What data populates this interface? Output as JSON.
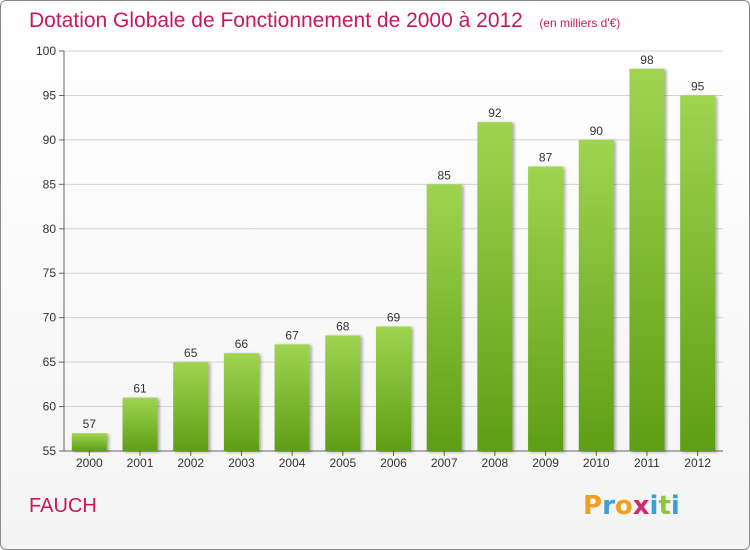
{
  "header": {
    "title": "Dotation Globale de Fonctionnement de 2000 à 2012",
    "subtitle": "(en milliers d'€)"
  },
  "footer": {
    "commune": "FAUCH",
    "logo_text": "Proxiti",
    "logo_letters": [
      {
        "char": "P",
        "color": "#f0a020"
      },
      {
        "char": "r",
        "color": "#3aa0d8"
      },
      {
        "char": "o",
        "color": "#f0a020"
      },
      {
        "char": "x",
        "color": "#d02a6e"
      },
      {
        "char": "i",
        "color": "#3aa0d8"
      },
      {
        "char": "t",
        "color": "#8cc63f"
      },
      {
        "char": "i",
        "color": "#3aa0d8"
      }
    ]
  },
  "colors": {
    "accent": "#c8185e",
    "bar_top": "#9fd450",
    "bar_bottom": "#5e9e15"
  },
  "chart_data": {
    "type": "bar",
    "title": "Dotation Globale de Fonctionnement de 2000 à 2012",
    "subtitle": "(en milliers d'€)",
    "categories": [
      "2000",
      "2001",
      "2002",
      "2003",
      "2004",
      "2005",
      "2006",
      "2007",
      "2008",
      "2009",
      "2010",
      "2011",
      "2012"
    ],
    "values": [
      57,
      61,
      65,
      66,
      67,
      68,
      69,
      85,
      92,
      87,
      90,
      98,
      95
    ],
    "ylim": [
      55,
      100
    ],
    "yticks": [
      55,
      60,
      65,
      70,
      75,
      80,
      85,
      90,
      95,
      100
    ],
    "grid": true,
    "xlabel": "",
    "ylabel": ""
  }
}
